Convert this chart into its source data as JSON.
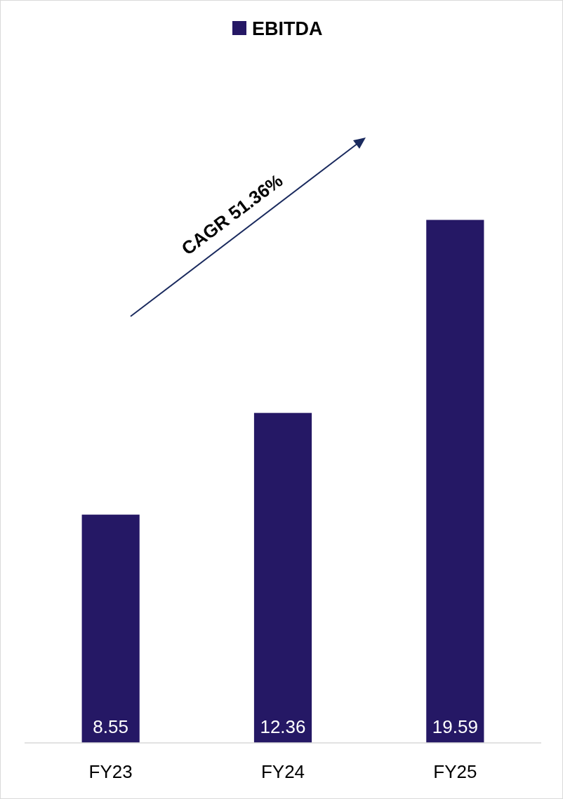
{
  "chart_data": {
    "type": "bar",
    "categories": [
      "FY23",
      "FY24",
      "FY25"
    ],
    "series": [
      {
        "name": "EBITDA",
        "color": "#251865",
        "values": [
          8.55,
          12.36,
          19.59
        ]
      }
    ],
    "data_labels": true,
    "legend": "top",
    "annotations": [
      "CAGR 51.36%"
    ]
  }
}
